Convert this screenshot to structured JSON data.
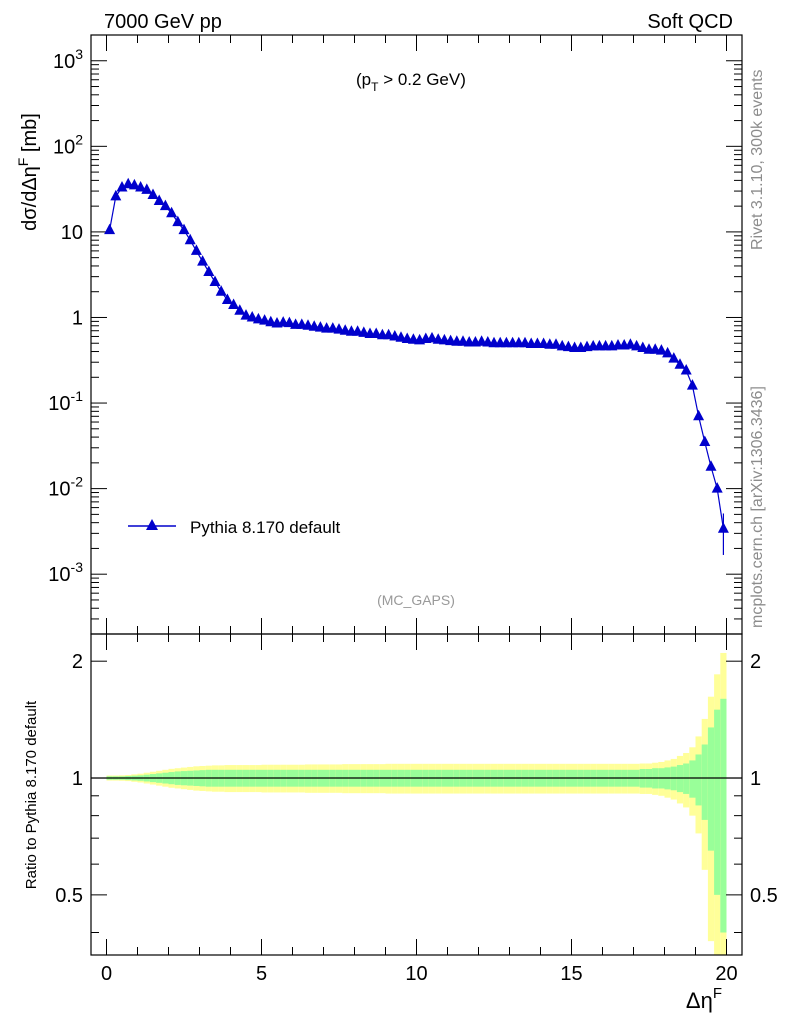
{
  "header": {
    "left": "7000 GeV pp",
    "right": "Soft QCD"
  },
  "annotations": {
    "cut": "(p_T > 0.2 GeV)",
    "analysis": "(MC_GAPS)",
    "side_top": "Rivet 3.1.10,  300k events",
    "side_bottom": "mcplots.cern.ch [arXiv:1306.3436]"
  },
  "colors": {
    "series": "#0000cc",
    "band_inner": "#99ff99",
    "band_outer": "#ffff99"
  },
  "chart_data": [
    {
      "type": "line",
      "marker": "triangle",
      "ylabel": "dσ/dΔη^F [mb]",
      "y_scale": "log",
      "ylim": [
        0.0002,
        2000
      ],
      "xlim": [
        -0.5,
        20.5
      ],
      "y_ticks": [
        "10^3",
        "10^2",
        "10",
        "1",
        "10^-1",
        "10^-2",
        "10^-3"
      ],
      "legend": {
        "position": "bottom-left",
        "entries": [
          "Pythia 8.170 default"
        ]
      },
      "series": [
        {
          "name": "Pythia 8.170 default",
          "x": [
            0.1,
            0.3,
            0.5,
            0.7,
            0.9,
            1.1,
            1.3,
            1.5,
            1.7,
            1.9,
            2.1,
            2.3,
            2.5,
            2.7,
            2.9,
            3.1,
            3.3,
            3.5,
            3.7,
            3.9,
            4.1,
            4.3,
            4.5,
            4.7,
            4.9,
            5.1,
            5.3,
            5.5,
            5.7,
            5.9,
            6.1,
            6.3,
            6.5,
            6.7,
            6.9,
            7.1,
            7.3,
            7.5,
            7.7,
            7.9,
            8.1,
            8.3,
            8.5,
            8.7,
            8.9,
            9.1,
            9.3,
            9.5,
            9.7,
            9.9,
            10.1,
            10.3,
            10.5,
            10.7,
            10.9,
            11.1,
            11.3,
            11.5,
            11.7,
            11.9,
            12.1,
            12.3,
            12.5,
            12.7,
            12.9,
            13.1,
            13.3,
            13.5,
            13.7,
            13.9,
            14.1,
            14.3,
            14.5,
            14.7,
            14.9,
            15.1,
            15.3,
            15.5,
            15.7,
            15.9,
            16.1,
            16.3,
            16.5,
            16.7,
            16.9,
            17.1,
            17.3,
            17.5,
            17.7,
            17.9,
            18.1,
            18.3,
            18.5,
            18.7,
            18.9,
            19.1,
            19.3,
            19.5,
            19.7,
            19.9
          ],
          "values": [
            10.5,
            26,
            33,
            36,
            35,
            33,
            31,
            27,
            23,
            20,
            16.5,
            13,
            10.5,
            8,
            6,
            4.5,
            3.4,
            2.6,
            2.0,
            1.6,
            1.4,
            1.2,
            1.05,
            1.0,
            0.95,
            0.92,
            0.88,
            0.85,
            0.87,
            0.86,
            0.82,
            0.82,
            0.8,
            0.78,
            0.76,
            0.74,
            0.74,
            0.72,
            0.7,
            0.68,
            0.68,
            0.66,
            0.64,
            0.64,
            0.62,
            0.62,
            0.6,
            0.58,
            0.56,
            0.55,
            0.54,
            0.56,
            0.57,
            0.55,
            0.54,
            0.53,
            0.52,
            0.52,
            0.51,
            0.51,
            0.52,
            0.51,
            0.5,
            0.5,
            0.5,
            0.5,
            0.5,
            0.5,
            0.49,
            0.49,
            0.49,
            0.48,
            0.48,
            0.46,
            0.45,
            0.44,
            0.44,
            0.45,
            0.46,
            0.46,
            0.46,
            0.46,
            0.47,
            0.47,
            0.48,
            0.46,
            0.44,
            0.42,
            0.42,
            0.41,
            0.38,
            0.33,
            0.28,
            0.24,
            0.16,
            0.07,
            0.035,
            0.018,
            0.01,
            0.0034
          ],
          "errors": [
            0.3,
            0.6,
            0.7,
            0.7,
            0.7,
            0.6,
            0.6,
            0.5,
            0.5,
            0.4,
            0.4,
            0.3,
            0.3,
            0.2,
            0.15,
            0.1,
            0.08,
            0.06,
            0.05,
            0.04,
            0.03,
            0.03,
            0.025,
            0.025,
            0.025,
            0.025,
            0.025,
            0.025,
            0.025,
            0.025,
            0.025,
            0.025,
            0.025,
            0.025,
            0.025,
            0.025,
            0.025,
            0.025,
            0.025,
            0.025,
            0.025,
            0.025,
            0.025,
            0.025,
            0.025,
            0.025,
            0.025,
            0.025,
            0.025,
            0.025,
            0.025,
            0.025,
            0.025,
            0.025,
            0.025,
            0.025,
            0.025,
            0.025,
            0.025,
            0.025,
            0.025,
            0.025,
            0.025,
            0.025,
            0.025,
            0.025,
            0.025,
            0.025,
            0.025,
            0.025,
            0.025,
            0.025,
            0.025,
            0.025,
            0.025,
            0.025,
            0.025,
            0.025,
            0.025,
            0.025,
            0.025,
            0.025,
            0.025,
            0.025,
            0.025,
            0.025,
            0.025,
            0.025,
            0.025,
            0.025,
            0.025,
            0.02,
            0.02,
            0.02,
            0.015,
            0.008,
            0.005,
            0.004,
            0.004,
            0.002
          ]
        }
      ]
    },
    {
      "type": "area",
      "ylabel": "Ratio to Pythia 8.170 default",
      "xlabel": "Δη^F",
      "xlim": [
        -0.5,
        20.5
      ],
      "ylim": [
        0.35,
        2.35
      ],
      "y_scale": "log",
      "y_ticks": [
        "2",
        "1",
        "0.5"
      ],
      "x_ticks": [
        "0",
        "5",
        "10",
        "15",
        "20"
      ],
      "reference_line": 1,
      "bins": [
        0.1,
        0.3,
        0.5,
        0.7,
        0.9,
        1.1,
        1.3,
        1.5,
        1.7,
        1.9,
        2.1,
        2.3,
        2.5,
        2.7,
        2.9,
        3.1,
        3.3,
        3.5,
        3.7,
        3.9,
        4.1,
        4.3,
        4.5,
        4.7,
        4.9,
        5.1,
        5.3,
        5.5,
        5.7,
        5.9,
        6.1,
        6.3,
        6.5,
        6.7,
        6.9,
        7.1,
        7.3,
        7.5,
        7.7,
        7.9,
        8.1,
        8.3,
        8.5,
        8.7,
        8.9,
        9.1,
        9.3,
        9.5,
        9.7,
        9.9,
        10.1,
        10.3,
        10.5,
        10.7,
        10.9,
        11.1,
        11.3,
        11.5,
        11.7,
        11.9,
        12.1,
        12.3,
        12.5,
        12.7,
        12.9,
        13.1,
        13.3,
        13.5,
        13.7,
        13.9,
        14.1,
        14.3,
        14.5,
        14.7,
        14.9,
        15.1,
        15.3,
        15.5,
        15.7,
        15.9,
        16.1,
        16.3,
        16.5,
        16.7,
        16.9,
        17.1,
        17.3,
        17.5,
        17.7,
        17.9,
        18.1,
        18.3,
        18.5,
        18.7,
        18.9,
        19.1,
        19.3,
        19.5,
        19.7,
        19.9
      ],
      "inner_band": [
        0.01,
        0.01,
        0.01,
        0.012,
        0.014,
        0.016,
        0.02,
        0.024,
        0.028,
        0.032,
        0.036,
        0.04,
        0.042,
        0.044,
        0.046,
        0.048,
        0.05,
        0.05,
        0.05,
        0.05,
        0.05,
        0.05,
        0.05,
        0.05,
        0.05,
        0.05,
        0.05,
        0.05,
        0.05,
        0.05,
        0.05,
        0.05,
        0.05,
        0.05,
        0.05,
        0.05,
        0.05,
        0.05,
        0.05,
        0.05,
        0.05,
        0.05,
        0.05,
        0.05,
        0.05,
        0.05,
        0.05,
        0.05,
        0.05,
        0.05,
        0.05,
        0.05,
        0.05,
        0.05,
        0.05,
        0.05,
        0.05,
        0.05,
        0.05,
        0.05,
        0.05,
        0.05,
        0.05,
        0.05,
        0.05,
        0.05,
        0.05,
        0.05,
        0.05,
        0.05,
        0.05,
        0.05,
        0.05,
        0.05,
        0.05,
        0.05,
        0.05,
        0.05,
        0.05,
        0.05,
        0.05,
        0.05,
        0.05,
        0.05,
        0.05,
        0.05,
        0.055,
        0.055,
        0.06,
        0.06,
        0.065,
        0.07,
        0.08,
        0.09,
        0.11,
        0.15,
        0.22,
        0.35,
        0.5,
        0.6
      ],
      "outer_band": [
        0.015,
        0.015,
        0.016,
        0.018,
        0.022,
        0.026,
        0.032,
        0.038,
        0.044,
        0.05,
        0.056,
        0.06,
        0.064,
        0.068,
        0.072,
        0.074,
        0.076,
        0.078,
        0.078,
        0.08,
        0.08,
        0.08,
        0.08,
        0.08,
        0.08,
        0.082,
        0.082,
        0.082,
        0.082,
        0.082,
        0.082,
        0.082,
        0.084,
        0.084,
        0.084,
        0.084,
        0.084,
        0.084,
        0.086,
        0.086,
        0.086,
        0.086,
        0.086,
        0.086,
        0.086,
        0.088,
        0.088,
        0.088,
        0.088,
        0.088,
        0.088,
        0.088,
        0.088,
        0.088,
        0.088,
        0.088,
        0.088,
        0.088,
        0.088,
        0.088,
        0.088,
        0.088,
        0.088,
        0.088,
        0.088,
        0.088,
        0.088,
        0.088,
        0.088,
        0.088,
        0.088,
        0.088,
        0.088,
        0.088,
        0.088,
        0.088,
        0.088,
        0.088,
        0.088,
        0.088,
        0.088,
        0.088,
        0.088,
        0.088,
        0.088,
        0.088,
        0.09,
        0.09,
        0.095,
        0.1,
        0.11,
        0.12,
        0.14,
        0.16,
        0.2,
        0.28,
        0.42,
        0.62,
        0.85,
        1.1
      ]
    }
  ]
}
